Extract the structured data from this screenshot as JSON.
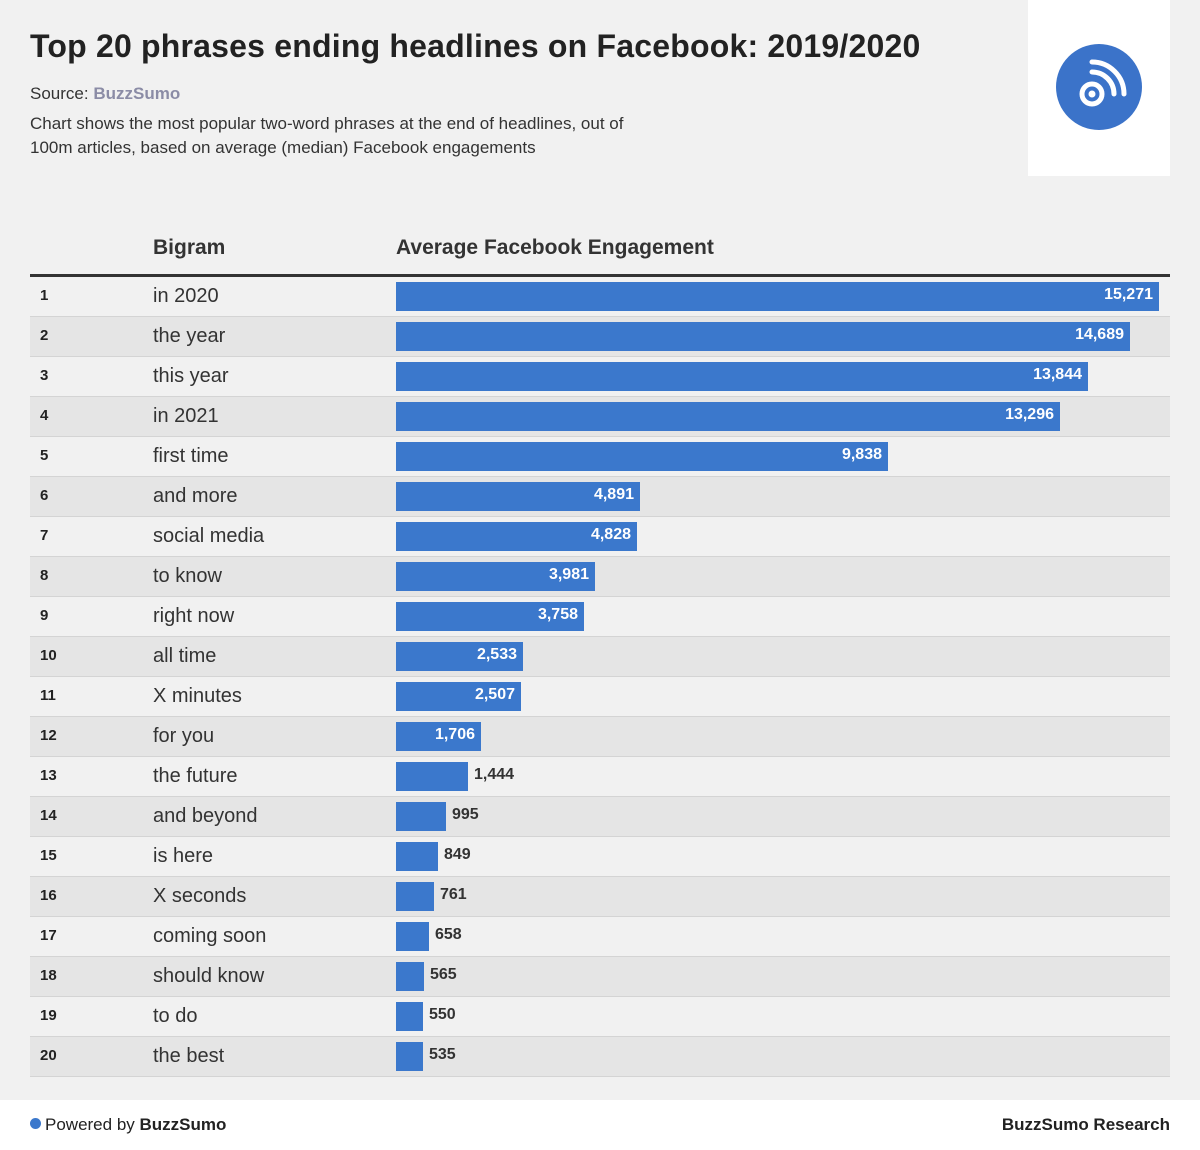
{
  "header": {
    "title": "Top 20 phrases ending headlines on Facebook: 2019/2020",
    "source_label": "Source:",
    "source_brand": "BuzzSumo",
    "subtitle": "Chart shows the most popular two-word phrases at the end of headlines, out of 100m articles, based on average (median) Facebook engagements",
    "logo_icon": "feed-signal-icon"
  },
  "table": {
    "col_bigram": "Bigram",
    "col_engagement": "Average Facebook Engagement"
  },
  "chart_data": {
    "type": "bar",
    "orientation": "horizontal",
    "ranks": [
      "1",
      "2",
      "3",
      "4",
      "5",
      "6",
      "7",
      "8",
      "9",
      "10",
      "11",
      "12",
      "13",
      "14",
      "15",
      "16",
      "17",
      "18",
      "19",
      "20"
    ],
    "categories": [
      "in 2020",
      "the year",
      "this year",
      "in 2021",
      "first time",
      "and more",
      "social media",
      "to know",
      "right now",
      "all time",
      "X minutes",
      "for you",
      "the future",
      "and beyond",
      "is here",
      "X seconds",
      "coming soon",
      "should know",
      "to do",
      "the best"
    ],
    "values": [
      15271,
      14689,
      13844,
      13296,
      9838,
      4891,
      4828,
      3981,
      3758,
      2533,
      2507,
      1706,
      1444,
      995,
      849,
      761,
      658,
      565,
      550,
      535
    ],
    "value_labels": [
      "15,271",
      "14,689",
      "13,844",
      "13,296",
      "9,838",
      "4,891",
      "4,828",
      "3,981",
      "3,758",
      "2,533",
      "2,507",
      "1,706",
      "1,444",
      "995",
      "849",
      "761",
      "658",
      "565",
      "550",
      "535"
    ],
    "xlim": [
      0,
      15271
    ],
    "bar_color": "#3b78cc"
  },
  "footer": {
    "powered_label": "Powered by",
    "powered_brand": "BuzzSumo",
    "research_label": "BuzzSumo Research"
  }
}
